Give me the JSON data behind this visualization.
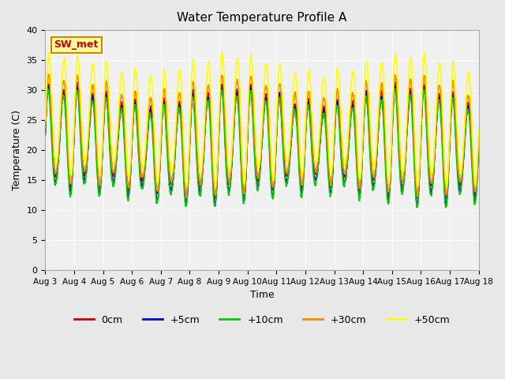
{
  "title": "Water Temperature Profile A",
  "xlabel": "Time",
  "ylabel": "Temperature (C)",
  "ylim": [
    0,
    40
  ],
  "yticks": [
    0,
    5,
    10,
    15,
    20,
    25,
    30,
    35,
    40
  ],
  "x_labels": [
    "Aug 3",
    "Aug 4",
    "Aug 5",
    "Aug 6",
    "Aug 7",
    "Aug 8",
    "Aug 9",
    "Aug 10",
    "Aug 11",
    "Aug 12",
    "Aug 13",
    "Aug 14",
    "Aug 15",
    "Aug 16",
    "Aug 17",
    "Aug 18"
  ],
  "legend_labels": [
    "0cm",
    "+5cm",
    "+10cm",
    "+30cm",
    "+50cm"
  ],
  "legend_colors": [
    "#cc0000",
    "#0000cc",
    "#00cc00",
    "#ff8800",
    "#ffff00"
  ],
  "annotation_text": "SW_met",
  "annotation_color": "#cc0000",
  "annotation_bg": "#ffff99",
  "annotation_border": "#cc8800",
  "background_color": "#e8e8e8",
  "plot_bg": "#f0f0f0",
  "grid_color": "#ffffff",
  "n_days": 15,
  "n_points_per_day": 96,
  "base_min": 14.0,
  "base_max": 29.0,
  "offsets_min": [
    0,
    -1.0,
    -1.5,
    0.5,
    2.0
  ],
  "offsets_max": [
    0,
    -0.5,
    -1.0,
    1.5,
    5.0
  ],
  "phase_shifts": [
    0.0,
    0.08,
    0.16,
    0.0,
    -0.12
  ],
  "line_colors": [
    "#cc0000",
    "#0000cc",
    "#00cc00",
    "#ff8800",
    "#ffff00"
  ],
  "line_widths": [
    1.2,
    1.2,
    1.2,
    1.2,
    1.2
  ]
}
